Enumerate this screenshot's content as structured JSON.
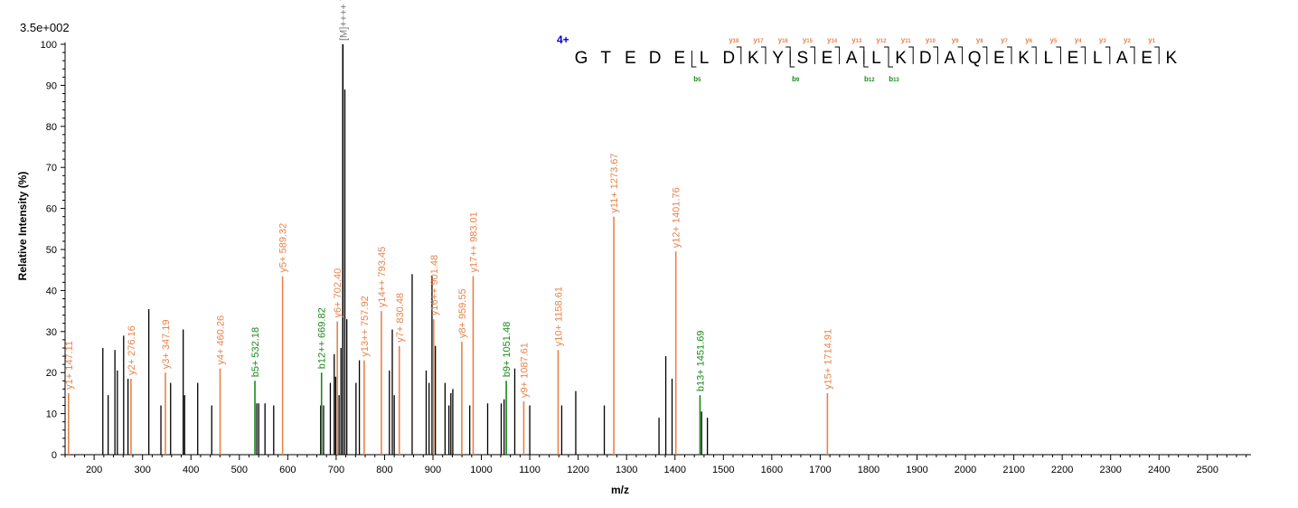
{
  "chart_data": {
    "type": "bar",
    "intensity_scale": "3.5e+002",
    "xlabel": "m/z",
    "ylabel": "Relative   Intensity (%)",
    "xlim": [
      140,
      2590
    ],
    "ylim": [
      0,
      102
    ],
    "x_ticks": [
      200,
      300,
      400,
      500,
      600,
      700,
      800,
      900,
      1000,
      1100,
      1200,
      1300,
      1400,
      1500,
      1600,
      1700,
      1800,
      1900,
      2000,
      2100,
      2200,
      2300,
      2400,
      2500
    ],
    "y_ticks": [
      0,
      10,
      20,
      30,
      40,
      50,
      60,
      70,
      80,
      90,
      100
    ],
    "colors": {
      "unmatched": "#000000",
      "y_ion": "#E8834A",
      "b_ion": "#1A8A1A",
      "precursor": "#777777",
      "charge": "#0000CC"
    },
    "peaks": [
      {
        "mz": 147.11,
        "intensity": 15,
        "ion": "y",
        "label": "y1+ 147.11"
      },
      {
        "mz": 218.0,
        "intensity": 26,
        "ion": "none"
      },
      {
        "mz": 229.0,
        "intensity": 14.5,
        "ion": "none"
      },
      {
        "mz": 243.0,
        "intensity": 25.5,
        "ion": "none"
      },
      {
        "mz": 248.0,
        "intensity": 20.5,
        "ion": "none"
      },
      {
        "mz": 261.0,
        "intensity": 29,
        "ion": "none"
      },
      {
        "mz": 270.0,
        "intensity": 18.5,
        "ion": "none"
      },
      {
        "mz": 276.16,
        "intensity": 18.5,
        "ion": "y",
        "label": "y2+ 276.16"
      },
      {
        "mz": 313.0,
        "intensity": 35.5,
        "ion": "none"
      },
      {
        "mz": 338.0,
        "intensity": 12,
        "ion": "none"
      },
      {
        "mz": 347.19,
        "intensity": 20,
        "ion": "y",
        "label": "y3+ 347.19"
      },
      {
        "mz": 358.0,
        "intensity": 17.5,
        "ion": "none"
      },
      {
        "mz": 384.0,
        "intensity": 30.5,
        "ion": "none"
      },
      {
        "mz": 387.0,
        "intensity": 14.5,
        "ion": "none"
      },
      {
        "mz": 414.0,
        "intensity": 17.5,
        "ion": "none"
      },
      {
        "mz": 443.0,
        "intensity": 12,
        "ion": "none"
      },
      {
        "mz": 460.26,
        "intensity": 21,
        "ion": "y",
        "label": "y4+ 460.26"
      },
      {
        "mz": 532.18,
        "intensity": 18,
        "ion": "b",
        "label": "b5+ 532.18"
      },
      {
        "mz": 536.0,
        "intensity": 12.5,
        "ion": "none"
      },
      {
        "mz": 540.0,
        "intensity": 12.5,
        "ion": "none"
      },
      {
        "mz": 553.0,
        "intensity": 12.5,
        "ion": "none"
      },
      {
        "mz": 571.0,
        "intensity": 12,
        "ion": "none"
      },
      {
        "mz": 589.32,
        "intensity": 43.5,
        "ion": "y",
        "label": "y5+ 589.32"
      },
      {
        "mz": 668.0,
        "intensity": 12,
        "ion": "none"
      },
      {
        "mz": 669.82,
        "intensity": 20,
        "ion": "b",
        "label": "b12++ 669.82"
      },
      {
        "mz": 674.0,
        "intensity": 12,
        "ion": "none"
      },
      {
        "mz": 688.0,
        "intensity": 17.5,
        "ion": "none"
      },
      {
        "mz": 696.0,
        "intensity": 24.5,
        "ion": "none"
      },
      {
        "mz": 699.0,
        "intensity": 19,
        "ion": "none"
      },
      {
        "mz": 702.4,
        "intensity": 32.5,
        "ion": "y",
        "label": "y6+ 702.40"
      },
      {
        "mz": 706.0,
        "intensity": 14.5,
        "ion": "none"
      },
      {
        "mz": 710.0,
        "intensity": 26,
        "ion": "none"
      },
      {
        "mz": 713.86,
        "intensity": 100,
        "ion": "precursor",
        "label": "[M]++++ 713.86"
      },
      {
        "mz": 718.0,
        "intensity": 89,
        "ion": "none"
      },
      {
        "mz": 722.0,
        "intensity": 33,
        "ion": "none"
      },
      {
        "mz": 741.0,
        "intensity": 17.5,
        "ion": "none"
      },
      {
        "mz": 748.0,
        "intensity": 23,
        "ion": "none"
      },
      {
        "mz": 757.92,
        "intensity": 23,
        "ion": "y",
        "label": "y13++ 757.92"
      },
      {
        "mz": 793.45,
        "intensity": 35,
        "ion": "y",
        "label": "y14++ 793.45"
      },
      {
        "mz": 810.0,
        "intensity": 20.5,
        "ion": "none"
      },
      {
        "mz": 816.0,
        "intensity": 30.5,
        "ion": "none"
      },
      {
        "mz": 820.0,
        "intensity": 14.5,
        "ion": "none"
      },
      {
        "mz": 830.48,
        "intensity": 26.5,
        "ion": "y",
        "label": "y7+ 830.48"
      },
      {
        "mz": 857.0,
        "intensity": 44,
        "ion": "none"
      },
      {
        "mz": 886.0,
        "intensity": 20.5,
        "ion": "none"
      },
      {
        "mz": 892.0,
        "intensity": 17.5,
        "ion": "none"
      },
      {
        "mz": 898.0,
        "intensity": 43.5,
        "ion": "none"
      },
      {
        "mz": 901.48,
        "intensity": 33,
        "ion": "y",
        "label": "y16++ 901.48"
      },
      {
        "mz": 905.0,
        "intensity": 26.5,
        "ion": "none"
      },
      {
        "mz": 925.0,
        "intensity": 17.5,
        "ion": "none"
      },
      {
        "mz": 933.0,
        "intensity": 12,
        "ion": "none"
      },
      {
        "mz": 937.0,
        "intensity": 15,
        "ion": "none"
      },
      {
        "mz": 941.0,
        "intensity": 16,
        "ion": "none"
      },
      {
        "mz": 959.55,
        "intensity": 27.5,
        "ion": "y",
        "label": "y8+ 959.55"
      },
      {
        "mz": 976.0,
        "intensity": 12,
        "ion": "none"
      },
      {
        "mz": 983.01,
        "intensity": 43.5,
        "ion": "y",
        "label": "y17++ 983.01"
      },
      {
        "mz": 1013.0,
        "intensity": 12.5,
        "ion": "none"
      },
      {
        "mz": 1041.0,
        "intensity": 12.5,
        "ion": "none"
      },
      {
        "mz": 1047.0,
        "intensity": 13.5,
        "ion": "none"
      },
      {
        "mz": 1051.48,
        "intensity": 18,
        "ion": "b",
        "label": "b9+ 1051.48"
      },
      {
        "mz": 1069.0,
        "intensity": 21,
        "ion": "none"
      },
      {
        "mz": 1087.61,
        "intensity": 13,
        "ion": "y",
        "label": "y9+ 1087.61"
      },
      {
        "mz": 1100.0,
        "intensity": 12,
        "ion": "none"
      },
      {
        "mz": 1158.61,
        "intensity": 25.5,
        "ion": "y",
        "label": "y10+ 1158.61"
      },
      {
        "mz": 1166.0,
        "intensity": 12,
        "ion": "none"
      },
      {
        "mz": 1195.0,
        "intensity": 15.5,
        "ion": "none"
      },
      {
        "mz": 1254.0,
        "intensity": 12,
        "ion": "none"
      },
      {
        "mz": 1273.67,
        "intensity": 58,
        "ion": "y",
        "label": "y11+ 1273.67"
      },
      {
        "mz": 1367.0,
        "intensity": 9,
        "ion": "none"
      },
      {
        "mz": 1381.0,
        "intensity": 24,
        "ion": "none"
      },
      {
        "mz": 1394.0,
        "intensity": 18.5,
        "ion": "none"
      },
      {
        "mz": 1401.76,
        "intensity": 49.5,
        "ion": "y",
        "label": "y12+ 1401.76"
      },
      {
        "mz": 1451.69,
        "intensity": 14.5,
        "ion": "b",
        "label": "b13+ 1451.69"
      },
      {
        "mz": 1455.0,
        "intensity": 10.5,
        "ion": "none"
      },
      {
        "mz": 1467.0,
        "intensity": 9,
        "ion": "none"
      },
      {
        "mz": 1714.91,
        "intensity": 15,
        "ion": "y",
        "label": "y15+ 1714.91"
      }
    ],
    "sequence": {
      "charge_label": "4+",
      "letters": [
        "G",
        "T",
        "E",
        "D",
        "E",
        "L",
        "D",
        "K",
        "Y",
        "S",
        "E",
        "A",
        "L",
        "K",
        "D",
        "A",
        "Q",
        "E",
        "K",
        "L",
        "E",
        "L",
        "A",
        "E",
        "K"
      ],
      "y_ions": [
        "y18",
        "y17",
        "y16",
        "y15",
        "y14",
        "y13",
        "y12",
        "y11",
        "y10",
        "y9",
        "y8",
        "y7",
        "y6",
        "y5",
        "y4",
        "y3",
        "y2",
        "y1"
      ],
      "y_after_index": [
        7,
        8,
        9,
        10,
        11,
        12,
        13,
        14,
        15,
        16,
        17,
        18,
        19,
        20,
        21,
        22,
        23,
        24
      ],
      "b_ions": [
        "b5",
        "b9",
        "b12",
        "b13"
      ],
      "b_after_index": [
        5,
        9,
        12,
        13
      ]
    }
  }
}
